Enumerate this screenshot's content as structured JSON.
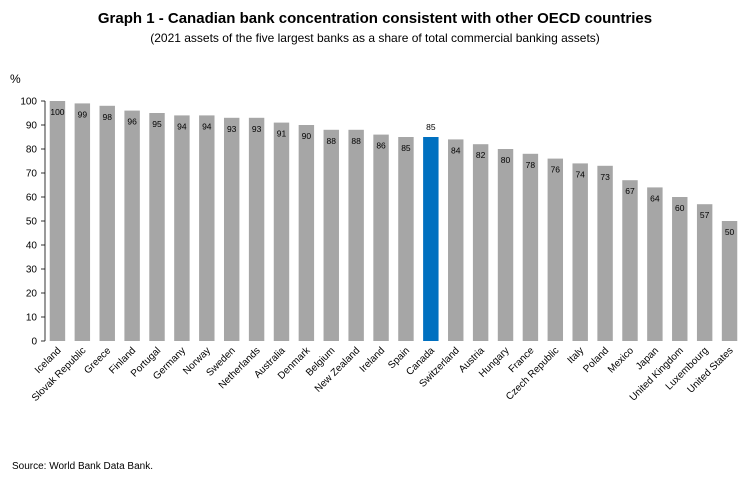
{
  "chart_data": {
    "type": "bar",
    "title": "Graph 1 - Canadian bank concentration consistent with other OECD countries",
    "subtitle": "(2021  assets of the five  largest banks  as a share  of total commercial banking  assets)",
    "ylabel": "%",
    "xlabel": "",
    "ylim": [
      0,
      100
    ],
    "yticks": [
      0,
      10,
      20,
      30,
      40,
      50,
      60,
      70,
      80,
      90,
      100
    ],
    "categories": [
      "Iceland",
      "Slovak Republic",
      "Greece",
      "Finland",
      "Portugal",
      "Germany",
      "Norway",
      "Sweden",
      "Netherlands",
      "Australia",
      "Denmark",
      "Belgium",
      "New Zealand",
      "Ireland",
      "Spain",
      "Canada",
      "Switzerland",
      "Austria",
      "Hungary",
      "France",
      "Czech Republic",
      "Italy",
      "Poland",
      "Mexico",
      "Japan",
      "United Kingdom",
      "Luxembourg",
      "United States"
    ],
    "values": [
      100,
      99,
      98,
      96,
      95,
      94,
      94,
      93,
      93,
      91,
      90,
      88,
      88,
      86,
      85,
      85,
      84,
      82,
      80,
      78,
      76,
      74,
      73,
      67,
      64,
      60,
      57,
      50
    ],
    "data_labels": [
      "100",
      "99",
      "98",
      "96",
      "95",
      "94",
      "94",
      "93",
      "93",
      "91",
      "90",
      "88",
      "88",
      "86",
      "85",
      "85",
      "84",
      "82",
      "80",
      "78",
      "76",
      "74",
      "73",
      "67",
      "64",
      "60",
      "57",
      "50"
    ],
    "highlight": "Canada",
    "colors": {
      "bar": "#a6a6a6",
      "highlight": "#0070c0"
    },
    "grid": false,
    "legend": "none"
  },
  "source": "Source: World Bank Data Bank."
}
